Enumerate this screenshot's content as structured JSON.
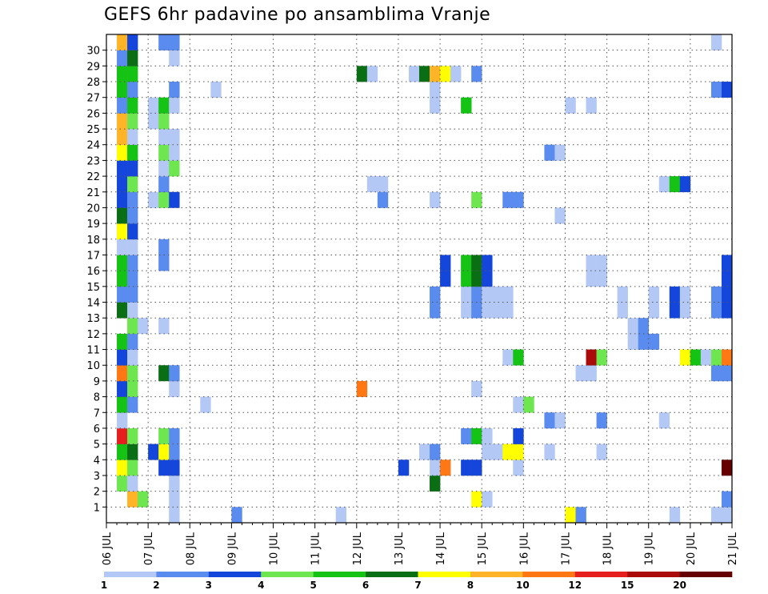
{
  "chart_data": {
    "type": "heatmap",
    "title": "GEFS 6hr padavine po ansamblima Vranje",
    "xlabel": "",
    "ylabel": "",
    "x_tick_labels": [
      "06 JUL",
      "07 JUL",
      "08 JUL",
      "09 JUL",
      "10 JUL",
      "11 JUL",
      "12 JUL",
      "13 JUL",
      "14 JUL",
      "15 JUL",
      "16 JUL",
      "17 JUL",
      "18 JUL",
      "19 JUL",
      "20 JUL",
      "21 JUL"
    ],
    "y_tick_labels": [
      "1",
      "2",
      "3",
      "4",
      "5",
      "6",
      "7",
      "8",
      "9",
      "10",
      "11",
      "12",
      "13",
      "14",
      "15",
      "16",
      "17",
      "18",
      "19",
      "20",
      "21",
      "22",
      "23",
      "24",
      "25",
      "26",
      "27",
      "28",
      "29",
      "30"
    ],
    "columns_per_day": 4,
    "grid": "dotted",
    "legend": {
      "position": "bottom",
      "labels": [
        "1",
        "2",
        "3",
        "4",
        "5",
        "6",
        "7",
        "8",
        "10",
        "12",
        "15",
        "20"
      ],
      "colors": [
        "#b4c8f5",
        "#5a8cf0",
        "#1446dc",
        "#6ee650",
        "#14c314",
        "#0a6e14",
        "#ffff00",
        "#ffb428",
        "#ff7814",
        "#e61e1e",
        "#aa0a0a",
        "#640000"
      ]
    },
    "cells": [
      [
        0,
        6,
        1
      ],
      [
        0,
        12,
        2
      ],
      [
        0,
        22,
        1
      ],
      [
        0,
        44,
        7
      ],
      [
        0,
        45,
        2
      ],
      [
        0,
        54,
        1
      ],
      [
        0,
        58,
        1
      ],
      [
        0,
        59,
        1
      ],
      [
        0,
        60,
        1
      ],
      [
        1,
        2,
        8
      ],
      [
        1,
        3,
        4
      ],
      [
        1,
        6,
        1
      ],
      [
        1,
        35,
        7
      ],
      [
        1,
        36,
        1
      ],
      [
        1,
        59,
        2
      ],
      [
        1,
        60,
        3
      ],
      [
        1,
        61,
        1
      ],
      [
        2,
        1,
        4
      ],
      [
        2,
        2,
        1
      ],
      [
        2,
        6,
        1
      ],
      [
        2,
        31,
        6
      ],
      [
        3,
        1,
        7
      ],
      [
        3,
        2,
        4
      ],
      [
        3,
        5,
        3
      ],
      [
        3,
        6,
        3
      ],
      [
        3,
        28,
        3
      ],
      [
        3,
        31,
        1
      ],
      [
        3,
        32,
        9
      ],
      [
        3,
        34,
        3
      ],
      [
        3,
        35,
        3
      ],
      [
        3,
        39,
        1
      ],
      [
        3,
        59,
        12
      ],
      [
        3,
        60,
        7
      ],
      [
        4,
        1,
        5
      ],
      [
        4,
        2,
        6
      ],
      [
        4,
        4,
        3
      ],
      [
        4,
        5,
        7
      ],
      [
        4,
        6,
        2
      ],
      [
        4,
        30,
        1
      ],
      [
        4,
        31,
        2
      ],
      [
        4,
        36,
        1
      ],
      [
        4,
        37,
        1
      ],
      [
        4,
        38,
        7
      ],
      [
        4,
        39,
        7
      ],
      [
        4,
        42,
        1
      ],
      [
        4,
        47,
        1
      ],
      [
        5,
        1,
        10
      ],
      [
        5,
        2,
        4
      ],
      [
        5,
        5,
        4
      ],
      [
        5,
        6,
        2
      ],
      [
        5,
        34,
        2
      ],
      [
        5,
        35,
        5
      ],
      [
        5,
        36,
        1
      ],
      [
        5,
        39,
        3
      ],
      [
        6,
        1,
        1
      ],
      [
        6,
        42,
        2
      ],
      [
        6,
        43,
        1
      ],
      [
        6,
        47,
        2
      ],
      [
        6,
        53,
        1
      ],
      [
        7,
        1,
        5
      ],
      [
        7,
        2,
        2
      ],
      [
        7,
        9,
        1
      ],
      [
        7,
        39,
        1
      ],
      [
        7,
        40,
        4
      ],
      [
        8,
        1,
        3
      ],
      [
        8,
        2,
        4
      ],
      [
        8,
        6,
        1
      ],
      [
        8,
        24,
        9
      ],
      [
        8,
        35,
        1
      ],
      [
        9,
        1,
        9
      ],
      [
        9,
        2,
        4
      ],
      [
        9,
        5,
        6
      ],
      [
        9,
        6,
        2
      ],
      [
        9,
        45,
        1
      ],
      [
        9,
        46,
        1
      ],
      [
        9,
        58,
        2
      ],
      [
        9,
        59,
        2
      ],
      [
        10,
        1,
        3
      ],
      [
        10,
        2,
        1
      ],
      [
        10,
        38,
        1
      ],
      [
        10,
        39,
        5
      ],
      [
        10,
        46,
        11
      ],
      [
        10,
        47,
        4
      ],
      [
        10,
        55,
        7
      ],
      [
        10,
        56,
        5
      ],
      [
        10,
        57,
        1
      ],
      [
        10,
        58,
        4
      ],
      [
        10,
        59,
        9
      ],
      [
        11,
        1,
        5
      ],
      [
        11,
        2,
        2
      ],
      [
        11,
        50,
        1
      ],
      [
        11,
        51,
        2
      ],
      [
        11,
        52,
        2
      ],
      [
        12,
        2,
        4
      ],
      [
        12,
        3,
        1
      ],
      [
        12,
        5,
        1
      ],
      [
        12,
        50,
        1
      ],
      [
        12,
        51,
        2
      ],
      [
        13,
        1,
        6
      ],
      [
        13,
        2,
        1
      ],
      [
        13,
        31,
        2
      ],
      [
        13,
        34,
        1
      ],
      [
        13,
        35,
        2
      ],
      [
        13,
        36,
        1
      ],
      [
        13,
        37,
        1
      ],
      [
        13,
        38,
        1
      ],
      [
        13,
        49,
        1
      ],
      [
        13,
        52,
        1
      ],
      [
        13,
        54,
        3
      ],
      [
        13,
        55,
        1
      ],
      [
        13,
        58,
        2
      ],
      [
        13,
        59,
        3
      ],
      [
        14,
        1,
        2
      ],
      [
        14,
        2,
        2
      ],
      [
        14,
        31,
        2
      ],
      [
        14,
        34,
        1
      ],
      [
        14,
        35,
        2
      ],
      [
        14,
        36,
        1
      ],
      [
        14,
        37,
        1
      ],
      [
        14,
        38,
        1
      ],
      [
        14,
        49,
        1
      ],
      [
        14,
        52,
        1
      ],
      [
        14,
        54,
        3
      ],
      [
        14,
        55,
        1
      ],
      [
        14,
        58,
        2
      ],
      [
        14,
        59,
        3
      ],
      [
        15,
        1,
        5
      ],
      [
        15,
        2,
        2
      ],
      [
        15,
        32,
        3
      ],
      [
        15,
        34,
        5
      ],
      [
        15,
        35,
        6
      ],
      [
        15,
        36,
        3
      ],
      [
        15,
        46,
        1
      ],
      [
        15,
        47,
        1
      ],
      [
        15,
        59,
        3
      ],
      [
        16,
        1,
        5
      ],
      [
        16,
        2,
        2
      ],
      [
        16,
        5,
        2
      ],
      [
        16,
        32,
        3
      ],
      [
        16,
        34,
        5
      ],
      [
        16,
        35,
        6
      ],
      [
        16,
        36,
        3
      ],
      [
        16,
        46,
        1
      ],
      [
        16,
        47,
        1
      ],
      [
        16,
        59,
        3
      ],
      [
        17,
        1,
        1
      ],
      [
        17,
        2,
        1
      ],
      [
        17,
        5,
        2
      ],
      [
        18,
        1,
        7
      ],
      [
        18,
        2,
        3
      ],
      [
        19,
        1,
        6
      ],
      [
        19,
        2,
        2
      ],
      [
        19,
        43,
        1
      ],
      [
        20,
        1,
        3
      ],
      [
        20,
        2,
        2
      ],
      [
        20,
        4,
        1
      ],
      [
        20,
        5,
        4
      ],
      [
        20,
        6,
        3
      ],
      [
        20,
        26,
        2
      ],
      [
        20,
        31,
        1
      ],
      [
        20,
        35,
        4
      ],
      [
        20,
        38,
        2
      ],
      [
        20,
        39,
        2
      ],
      [
        21,
        1,
        3
      ],
      [
        21,
        2,
        4
      ],
      [
        21,
        5,
        2
      ],
      [
        21,
        25,
        1
      ],
      [
        21,
        26,
        1
      ],
      [
        21,
        53,
        1
      ],
      [
        21,
        54,
        5
      ],
      [
        21,
        55,
        3
      ],
      [
        22,
        1,
        3
      ],
      [
        22,
        2,
        3
      ],
      [
        22,
        5,
        1
      ],
      [
        22,
        6,
        4
      ],
      [
        23,
        1,
        7
      ],
      [
        23,
        2,
        5
      ],
      [
        23,
        5,
        4
      ],
      [
        23,
        6,
        1
      ],
      [
        23,
        42,
        2
      ],
      [
        23,
        43,
        1
      ],
      [
        24,
        1,
        8
      ],
      [
        24,
        2,
        1
      ],
      [
        24,
        5,
        1
      ],
      [
        24,
        6,
        1
      ],
      [
        25,
        1,
        8
      ],
      [
        25,
        2,
        4
      ],
      [
        25,
        4,
        1
      ],
      [
        25,
        5,
        4
      ],
      [
        26,
        1,
        2
      ],
      [
        26,
        2,
        5
      ],
      [
        26,
        4,
        1
      ],
      [
        26,
        5,
        5
      ],
      [
        26,
        6,
        1
      ],
      [
        26,
        31,
        1
      ],
      [
        26,
        34,
        5
      ],
      [
        26,
        44,
        1
      ],
      [
        26,
        46,
        1
      ],
      [
        27,
        1,
        5
      ],
      [
        27,
        2,
        2
      ],
      [
        27,
        6,
        2
      ],
      [
        27,
        10,
        1
      ],
      [
        27,
        31,
        1
      ],
      [
        27,
        58,
        2
      ],
      [
        27,
        59,
        3
      ],
      [
        28,
        1,
        5
      ],
      [
        28,
        2,
        5
      ],
      [
        28,
        24,
        6
      ],
      [
        28,
        25,
        1
      ],
      [
        28,
        29,
        1
      ],
      [
        28,
        30,
        6
      ],
      [
        28,
        31,
        8
      ],
      [
        28,
        32,
        7
      ],
      [
        28,
        33,
        1
      ],
      [
        28,
        35,
        2
      ],
      [
        29,
        1,
        2
      ],
      [
        29,
        2,
        6
      ],
      [
        29,
        6,
        1
      ],
      [
        30,
        1,
        8
      ],
      [
        30,
        2,
        3
      ],
      [
        30,
        5,
        2
      ],
      [
        30,
        6,
        2
      ],
      [
        30,
        58,
        1
      ]
    ]
  }
}
